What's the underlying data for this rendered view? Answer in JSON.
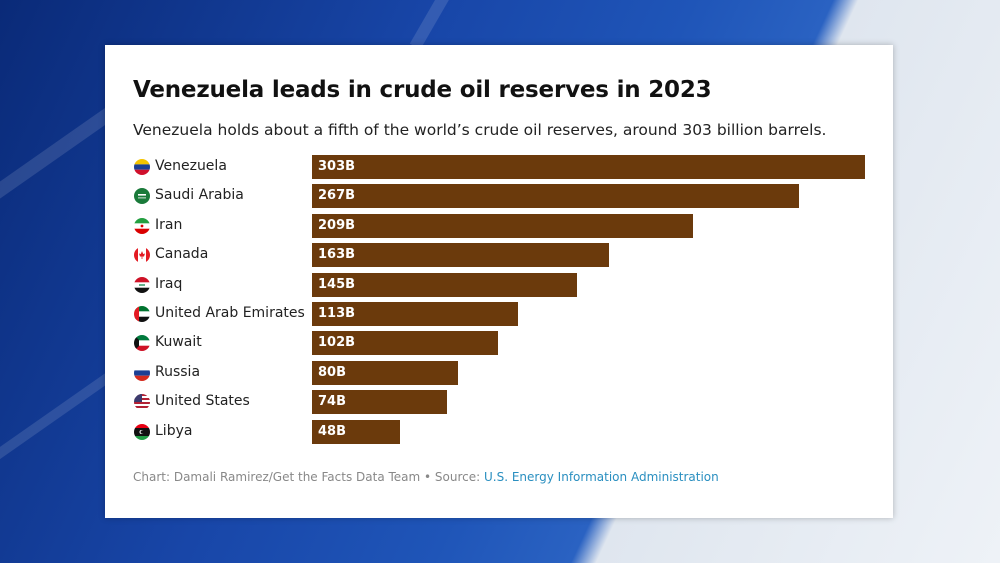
{
  "chart_data": {
    "type": "bar",
    "orientation": "horizontal",
    "title": "Venezuela leads in crude oil reserves in 2023",
    "subtitle": "Venezuela holds about a fifth of the world’s crude oil reserves, around 303 billion barrels.",
    "categories": [
      "Venezuela",
      "Saudi Arabia",
      "Iran",
      "Canada",
      "Iraq",
      "United Arab Emirates",
      "Kuwait",
      "Russia",
      "United States",
      "Libya"
    ],
    "values": [
      303,
      267,
      209,
      163,
      145,
      113,
      102,
      80,
      74,
      48
    ],
    "labels": [
      "303B",
      "267B",
      "209B",
      "163B",
      "145B",
      "113B",
      "102B",
      "80B",
      "74B",
      "48B"
    ],
    "flag_icons": [
      "venezuela-flag-icon",
      "saudi-arabia-flag-icon",
      "iran-flag-icon",
      "canada-flag-icon",
      "iraq-flag-icon",
      "uae-flag-icon",
      "kuwait-flag-icon",
      "russia-flag-icon",
      "usa-flag-icon",
      "libya-flag-icon"
    ],
    "unit": "billion barrels",
    "xlim": [
      0,
      303
    ],
    "grid": false,
    "bar_color": "#6b3a0c"
  },
  "footer": {
    "credit": "Chart: Damali Ramirez/Get the Facts Data Team • Source: ",
    "source_link": "U.S. Energy Information Administration"
  },
  "colors": {
    "link": "#2a8fc0",
    "background": "#1846a8"
  }
}
